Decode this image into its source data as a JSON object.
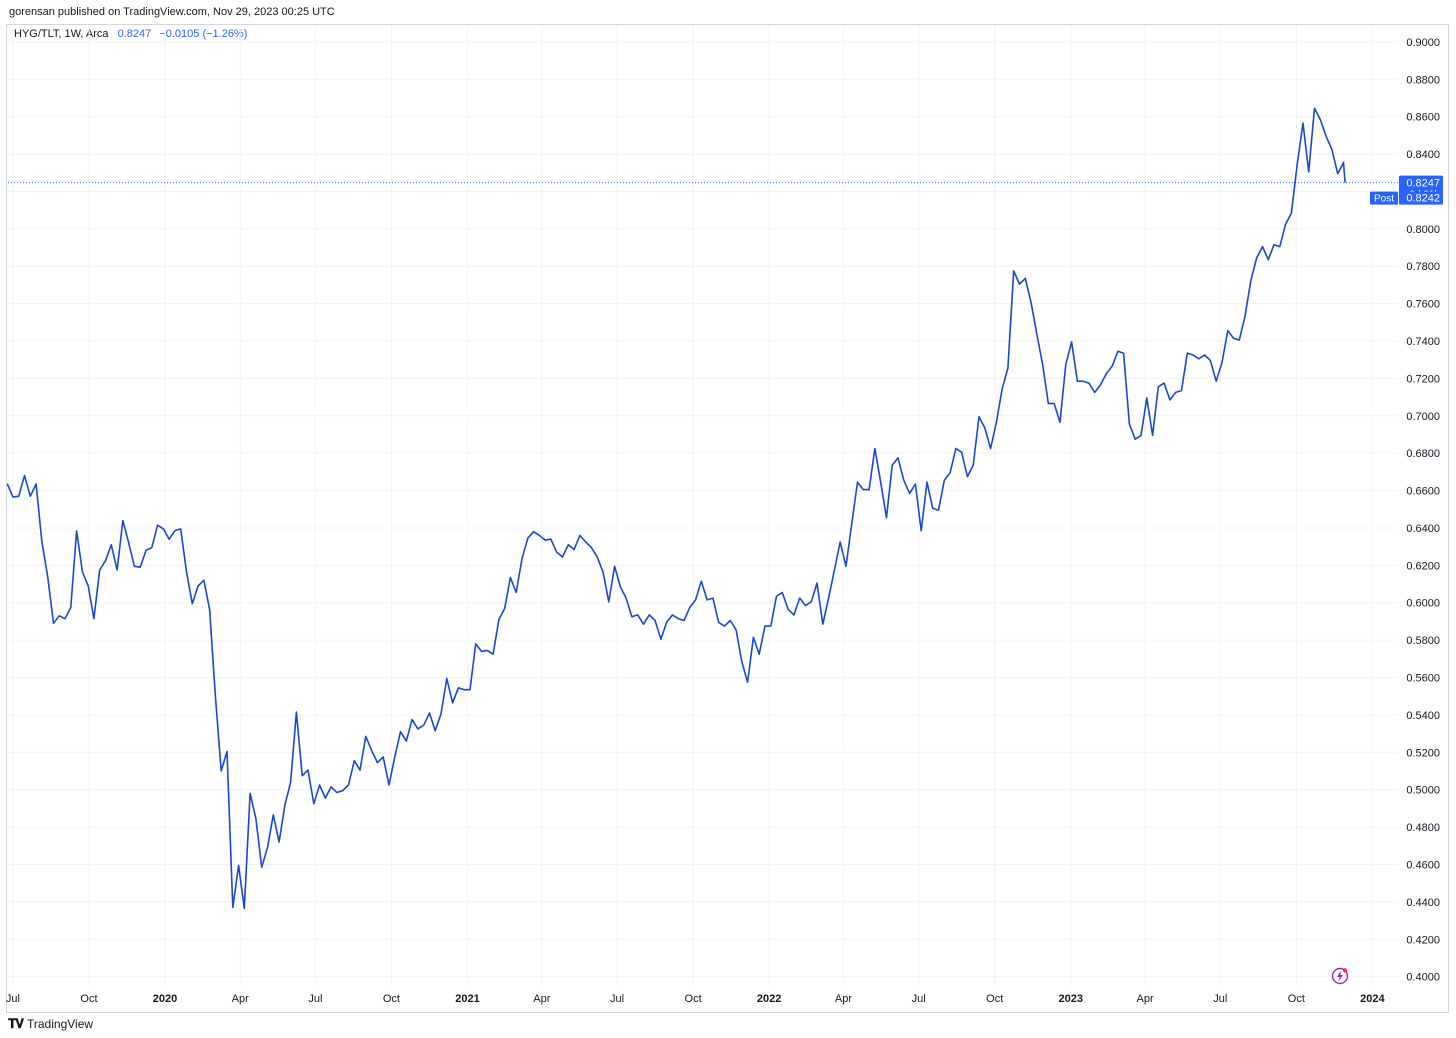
{
  "header": {
    "published": "gorensan published on TradingView.com, Nov 29, 2023 00:25 UTC"
  },
  "legend": {
    "symbol": "HYG/TLT, 1W, Arca",
    "last": "0.8247",
    "change": "−0.0105 (−1.26%)"
  },
  "price_labels": {
    "last": "0.8247",
    "countdown": "2d 21h",
    "post_tag": "Post",
    "post_value": "0.8242"
  },
  "footer": {
    "brand": "TradingView"
  },
  "colors": {
    "line": "#1848cc",
    "grid": "#f0f3fa",
    "label_bg": "#2962ff",
    "axis_text": "#131722"
  },
  "chart_data": {
    "type": "line",
    "title": "",
    "xlabel": "",
    "ylabel": "",
    "ylim": [
      0.395,
      0.9085
    ],
    "y_ticks": [
      "0.9000",
      "0.8800",
      "0.8600",
      "0.8400",
      "0.8200",
      "0.8000",
      "0.7800",
      "0.7600",
      "0.7400",
      "0.7200",
      "0.7000",
      "0.6800",
      "0.6600",
      "0.6400",
      "0.6200",
      "0.6000",
      "0.5800",
      "0.5600",
      "0.5400",
      "0.5200",
      "0.5000",
      "0.4800",
      "0.4600",
      "0.4400",
      "0.4200",
      "0.4000"
    ],
    "x_ticks": [
      {
        "label": "Jul",
        "date": "2019-07-01",
        "bold": false
      },
      {
        "label": "Oct",
        "date": "2019-10-01",
        "bold": false
      },
      {
        "label": "2020",
        "date": "2020-01-01",
        "bold": true
      },
      {
        "label": "Apr",
        "date": "2020-04-01",
        "bold": false
      },
      {
        "label": "Jul",
        "date": "2020-07-01",
        "bold": false
      },
      {
        "label": "Oct",
        "date": "2020-10-01",
        "bold": false
      },
      {
        "label": "2021",
        "date": "2021-01-01",
        "bold": true
      },
      {
        "label": "Apr",
        "date": "2021-04-01",
        "bold": false
      },
      {
        "label": "Jul",
        "date": "2021-07-01",
        "bold": false
      },
      {
        "label": "Oct",
        "date": "2021-10-01",
        "bold": false
      },
      {
        "label": "2022",
        "date": "2022-01-01",
        "bold": true
      },
      {
        "label": "Apr",
        "date": "2022-04-01",
        "bold": false
      },
      {
        "label": "Jul",
        "date": "2022-07-01",
        "bold": false
      },
      {
        "label": "Oct",
        "date": "2022-10-01",
        "bold": false
      },
      {
        "label": "2023",
        "date": "2023-01-01",
        "bold": true
      },
      {
        "label": "Apr",
        "date": "2023-04-01",
        "bold": false
      },
      {
        "label": "Jul",
        "date": "2023-07-01",
        "bold": false
      },
      {
        "label": "Oct",
        "date": "2023-10-01",
        "bold": false
      },
      {
        "label": "2024",
        "date": "2024-01-01",
        "bold": true
      }
    ],
    "xlim": [
      "2019-06-25",
      "2024-02-01"
    ],
    "series": [
      {
        "values": [
          [
            "2019-06-24",
            0.6637
          ],
          [
            "2019-07-01",
            0.6565
          ],
          [
            "2019-07-08",
            0.657
          ],
          [
            "2019-07-15",
            0.668
          ],
          [
            "2019-07-22",
            0.657
          ],
          [
            "2019-07-29",
            0.6635
          ],
          [
            "2019-08-05",
            0.6325
          ],
          [
            "2019-08-12",
            0.614
          ],
          [
            "2019-08-19",
            0.589
          ],
          [
            "2019-08-26",
            0.593
          ],
          [
            "2019-09-02",
            0.5915
          ],
          [
            "2019-09-09",
            0.5975
          ],
          [
            "2019-09-16",
            0.6385
          ],
          [
            "2019-09-23",
            0.6165
          ],
          [
            "2019-09-30",
            0.609
          ],
          [
            "2019-10-07",
            0.5915
          ],
          [
            "2019-10-14",
            0.6175
          ],
          [
            "2019-10-21",
            0.6225
          ],
          [
            "2019-10-28",
            0.631
          ],
          [
            "2019-11-04",
            0.6175
          ],
          [
            "2019-11-11",
            0.644
          ],
          [
            "2019-11-18",
            0.632
          ],
          [
            "2019-11-25",
            0.6195
          ],
          [
            "2019-12-02",
            0.619
          ],
          [
            "2019-12-09",
            0.628
          ],
          [
            "2019-12-16",
            0.6295
          ],
          [
            "2019-12-23",
            0.6415
          ],
          [
            "2019-12-30",
            0.6395
          ],
          [
            "2020-01-06",
            0.634
          ],
          [
            "2020-01-13",
            0.6385
          ],
          [
            "2020-01-20",
            0.6395
          ],
          [
            "2020-01-27",
            0.6165
          ],
          [
            "2020-02-03",
            0.5995
          ],
          [
            "2020-02-10",
            0.609
          ],
          [
            "2020-02-17",
            0.612
          ],
          [
            "2020-02-24",
            0.5965
          ],
          [
            "2020-03-02",
            0.55
          ],
          [
            "2020-03-09",
            0.51
          ],
          [
            "2020-03-16",
            0.5205
          ],
          [
            "2020-03-23",
            0.437
          ],
          [
            "2020-03-30",
            0.4595
          ],
          [
            "2020-04-06",
            0.4365
          ],
          [
            "2020-04-13",
            0.498
          ],
          [
            "2020-04-20",
            0.4845
          ],
          [
            "2020-04-27",
            0.4585
          ],
          [
            "2020-05-04",
            0.469
          ],
          [
            "2020-05-11",
            0.4865
          ],
          [
            "2020-05-18",
            0.472
          ],
          [
            "2020-05-25",
            0.4915
          ],
          [
            "2020-06-01",
            0.504
          ],
          [
            "2020-06-08",
            0.5415
          ],
          [
            "2020-06-15",
            0.5075
          ],
          [
            "2020-06-22",
            0.5105
          ],
          [
            "2020-06-29",
            0.4925
          ],
          [
            "2020-07-06",
            0.5025
          ],
          [
            "2020-07-13",
            0.4955
          ],
          [
            "2020-07-20",
            0.5015
          ],
          [
            "2020-07-27",
            0.4985
          ],
          [
            "2020-08-03",
            0.4995
          ],
          [
            "2020-08-10",
            0.5025
          ],
          [
            "2020-08-17",
            0.5155
          ],
          [
            "2020-08-24",
            0.5105
          ],
          [
            "2020-08-31",
            0.5285
          ],
          [
            "2020-09-07",
            0.521
          ],
          [
            "2020-09-14",
            0.5145
          ],
          [
            "2020-09-21",
            0.5175
          ],
          [
            "2020-09-28",
            0.5025
          ],
          [
            "2020-10-05",
            0.5175
          ],
          [
            "2020-10-12",
            0.531
          ],
          [
            "2020-10-19",
            0.526
          ],
          [
            "2020-10-26",
            0.5375
          ],
          [
            "2020-11-02",
            0.5325
          ],
          [
            "2020-11-09",
            0.5345
          ],
          [
            "2020-11-16",
            0.541
          ],
          [
            "2020-11-23",
            0.5315
          ],
          [
            "2020-11-30",
            0.5405
          ],
          [
            "2020-12-07",
            0.5595
          ],
          [
            "2020-12-14",
            0.5465
          ],
          [
            "2020-12-21",
            0.5545
          ],
          [
            "2020-12-28",
            0.5535
          ],
          [
            "2021-01-04",
            0.5535
          ],
          [
            "2021-01-11",
            0.578
          ],
          [
            "2021-01-18",
            0.574
          ],
          [
            "2021-01-25",
            0.5745
          ],
          [
            "2021-02-01",
            0.5725
          ],
          [
            "2021-02-08",
            0.591
          ],
          [
            "2021-02-15",
            0.597
          ],
          [
            "2021-02-22",
            0.6135
          ],
          [
            "2021-03-01",
            0.6055
          ],
          [
            "2021-03-08",
            0.6235
          ],
          [
            "2021-03-15",
            0.6345
          ],
          [
            "2021-03-22",
            0.638
          ],
          [
            "2021-03-29",
            0.636
          ],
          [
            "2021-04-05",
            0.6335
          ],
          [
            "2021-04-12",
            0.634
          ],
          [
            "2021-04-19",
            0.627
          ],
          [
            "2021-04-26",
            0.6245
          ],
          [
            "2021-05-03",
            0.631
          ],
          [
            "2021-05-10",
            0.6285
          ],
          [
            "2021-05-17",
            0.636
          ],
          [
            "2021-05-24",
            0.6325
          ],
          [
            "2021-05-31",
            0.6295
          ],
          [
            "2021-06-07",
            0.6245
          ],
          [
            "2021-06-14",
            0.6165
          ],
          [
            "2021-06-21",
            0.6005
          ],
          [
            "2021-06-28",
            0.6195
          ],
          [
            "2021-07-05",
            0.6085
          ],
          [
            "2021-07-12",
            0.6025
          ],
          [
            "2021-07-19",
            0.5925
          ],
          [
            "2021-07-26",
            0.5935
          ],
          [
            "2021-08-02",
            0.5885
          ],
          [
            "2021-08-09",
            0.5935
          ],
          [
            "2021-08-16",
            0.5905
          ],
          [
            "2021-08-23",
            0.5805
          ],
          [
            "2021-08-30",
            0.5895
          ],
          [
            "2021-09-06",
            0.5935
          ],
          [
            "2021-09-13",
            0.5915
          ],
          [
            "2021-09-20",
            0.5905
          ],
          [
            "2021-09-27",
            0.5975
          ],
          [
            "2021-10-04",
            0.6015
          ],
          [
            "2021-10-11",
            0.6115
          ],
          [
            "2021-10-18",
            0.6015
          ],
          [
            "2021-10-25",
            0.6025
          ],
          [
            "2021-11-01",
            0.5895
          ],
          [
            "2021-11-08",
            0.5875
          ],
          [
            "2021-11-15",
            0.5905
          ],
          [
            "2021-11-22",
            0.5855
          ],
          [
            "2021-11-29",
            0.5685
          ],
          [
            "2021-12-06",
            0.5575
          ],
          [
            "2021-12-13",
            0.5815
          ],
          [
            "2021-12-20",
            0.5725
          ],
          [
            "2021-12-27",
            0.5875
          ],
          [
            "2022-01-03",
            0.5875
          ],
          [
            "2022-01-10",
            0.6035
          ],
          [
            "2022-01-17",
            0.6055
          ],
          [
            "2022-01-24",
            0.5965
          ],
          [
            "2022-01-31",
            0.5935
          ],
          [
            "2022-02-07",
            0.6025
          ],
          [
            "2022-02-14",
            0.5985
          ],
          [
            "2022-02-21",
            0.6005
          ],
          [
            "2022-02-28",
            0.6105
          ],
          [
            "2022-03-07",
            0.5885
          ],
          [
            "2022-03-14",
            0.6025
          ],
          [
            "2022-03-21",
            0.6175
          ],
          [
            "2022-03-28",
            0.6325
          ],
          [
            "2022-04-04",
            0.6195
          ],
          [
            "2022-04-11",
            0.6425
          ],
          [
            "2022-04-18",
            0.6645
          ],
          [
            "2022-04-25",
            0.6605
          ],
          [
            "2022-05-02",
            0.6605
          ],
          [
            "2022-05-09",
            0.6825
          ],
          [
            "2022-05-16",
            0.6645
          ],
          [
            "2022-05-23",
            0.6455
          ],
          [
            "2022-05-30",
            0.6735
          ],
          [
            "2022-06-06",
            0.6775
          ],
          [
            "2022-06-13",
            0.6655
          ],
          [
            "2022-06-20",
            0.6585
          ],
          [
            "2022-06-27",
            0.6635
          ],
          [
            "2022-07-04",
            0.6385
          ],
          [
            "2022-07-11",
            0.6645
          ],
          [
            "2022-07-18",
            0.6505
          ],
          [
            "2022-07-25",
            0.6495
          ],
          [
            "2022-08-01",
            0.6655
          ],
          [
            "2022-08-08",
            0.6695
          ],
          [
            "2022-08-15",
            0.6825
          ],
          [
            "2022-08-22",
            0.6805
          ],
          [
            "2022-08-29",
            0.6675
          ],
          [
            "2022-09-05",
            0.6735
          ],
          [
            "2022-09-12",
            0.6995
          ],
          [
            "2022-09-19",
            0.6935
          ],
          [
            "2022-09-26",
            0.6825
          ],
          [
            "2022-10-03",
            0.6965
          ],
          [
            "2022-10-10",
            0.7145
          ],
          [
            "2022-10-17",
            0.7255
          ],
          [
            "2022-10-24",
            0.7775
          ],
          [
            "2022-10-31",
            0.7705
          ],
          [
            "2022-11-07",
            0.7735
          ],
          [
            "2022-11-14",
            0.7605
          ],
          [
            "2022-11-21",
            0.7435
          ],
          [
            "2022-11-28",
            0.7275
          ],
          [
            "2022-12-05",
            0.7065
          ],
          [
            "2022-12-12",
            0.7065
          ],
          [
            "2022-12-19",
            0.6965
          ],
          [
            "2022-12-26",
            0.7275
          ],
          [
            "2023-01-02",
            0.7395
          ],
          [
            "2023-01-09",
            0.7185
          ],
          [
            "2023-01-16",
            0.7185
          ],
          [
            "2023-01-23",
            0.7175
          ],
          [
            "2023-01-30",
            0.7125
          ],
          [
            "2023-02-06",
            0.7165
          ],
          [
            "2023-02-13",
            0.7225
          ],
          [
            "2023-02-20",
            0.7265
          ],
          [
            "2023-02-27",
            0.7345
          ],
          [
            "2023-03-06",
            0.7335
          ],
          [
            "2023-03-13",
            0.6955
          ],
          [
            "2023-03-20",
            0.6875
          ],
          [
            "2023-03-27",
            0.6895
          ],
          [
            "2023-04-03",
            0.7095
          ],
          [
            "2023-04-10",
            0.6895
          ],
          [
            "2023-04-17",
            0.7155
          ],
          [
            "2023-04-24",
            0.7175
          ],
          [
            "2023-05-01",
            0.7085
          ],
          [
            "2023-05-08",
            0.7125
          ],
          [
            "2023-05-15",
            0.7135
          ],
          [
            "2023-05-22",
            0.7335
          ],
          [
            "2023-05-29",
            0.7325
          ],
          [
            "2023-06-05",
            0.7305
          ],
          [
            "2023-06-12",
            0.7325
          ],
          [
            "2023-06-19",
            0.7295
          ],
          [
            "2023-06-26",
            0.7185
          ],
          [
            "2023-07-03",
            0.7285
          ],
          [
            "2023-07-10",
            0.7455
          ],
          [
            "2023-07-17",
            0.7415
          ],
          [
            "2023-07-24",
            0.7405
          ],
          [
            "2023-07-31",
            0.7535
          ],
          [
            "2023-08-07",
            0.7725
          ],
          [
            "2023-08-14",
            0.7845
          ],
          [
            "2023-08-21",
            0.7905
          ],
          [
            "2023-08-28",
            0.7835
          ],
          [
            "2023-09-04",
            0.7915
          ],
          [
            "2023-09-11",
            0.7905
          ],
          [
            "2023-09-18",
            0.8025
          ],
          [
            "2023-09-25",
            0.8085
          ],
          [
            "2023-10-02",
            0.8345
          ],
          [
            "2023-10-09",
            0.8565
          ],
          [
            "2023-10-16",
            0.8305
          ],
          [
            "2023-10-23",
            0.8645
          ],
          [
            "2023-10-30",
            0.8585
          ],
          [
            "2023-11-06",
            0.8495
          ],
          [
            "2023-11-13",
            0.8425
          ],
          [
            "2023-11-20",
            0.8295
          ],
          [
            "2023-11-27",
            0.8355
          ],
          [
            "2023-11-29",
            0.8247
          ]
        ]
      }
    ],
    "last_price_line": 0.8247,
    "grid": true
  }
}
